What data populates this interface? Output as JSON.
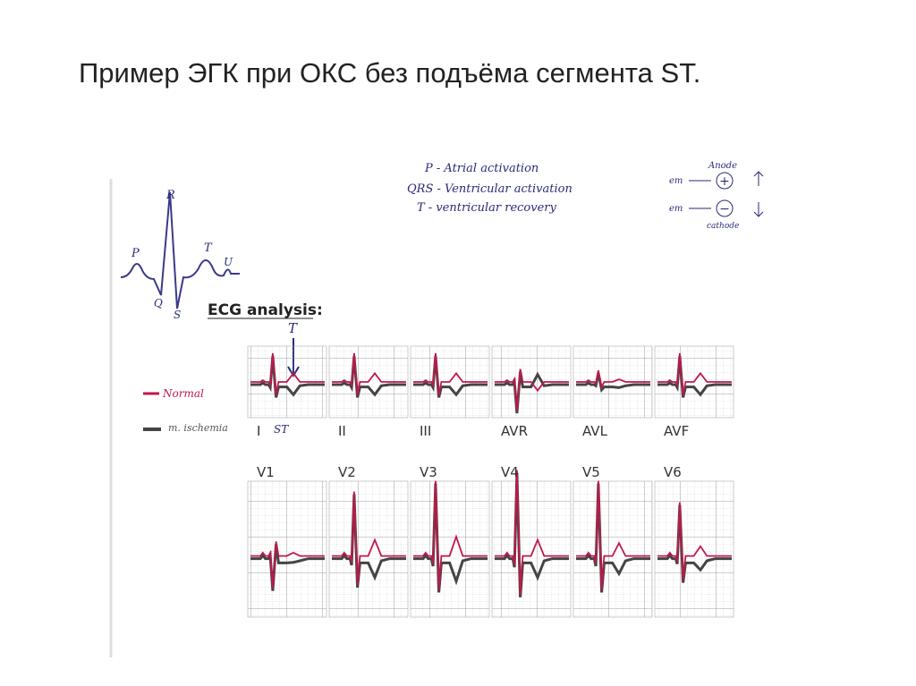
{
  "title": "Пример ЭГК при ОКС  без подъёма сегмента ST.",
  "figure": {
    "wave_labels": {
      "p": "P",
      "r": "R",
      "q": "Q",
      "s": "S",
      "t": "T",
      "u": "U"
    },
    "legend_notes": [
      "P - Atrial activation",
      "QRS - Ventricular activation",
      "T - ventricular recovery"
    ],
    "polarity": {
      "anode": "Anode",
      "cathode": "cathode",
      "em_top": "em",
      "em_bottom": "em",
      "plus": "+",
      "minus": "−"
    },
    "analysis_title": "ECG analysis:",
    "t_marker": "T",
    "st_marker": "ST",
    "key": {
      "normal": "Normal",
      "ischemia": "m. ischemia"
    },
    "leads_limb": [
      "I",
      "II",
      "III",
      "AVR",
      "AVL",
      "AVF"
    ],
    "leads_chest": [
      "V1",
      "V2",
      "V3",
      "V4",
      "V5",
      "V6"
    ]
  }
}
